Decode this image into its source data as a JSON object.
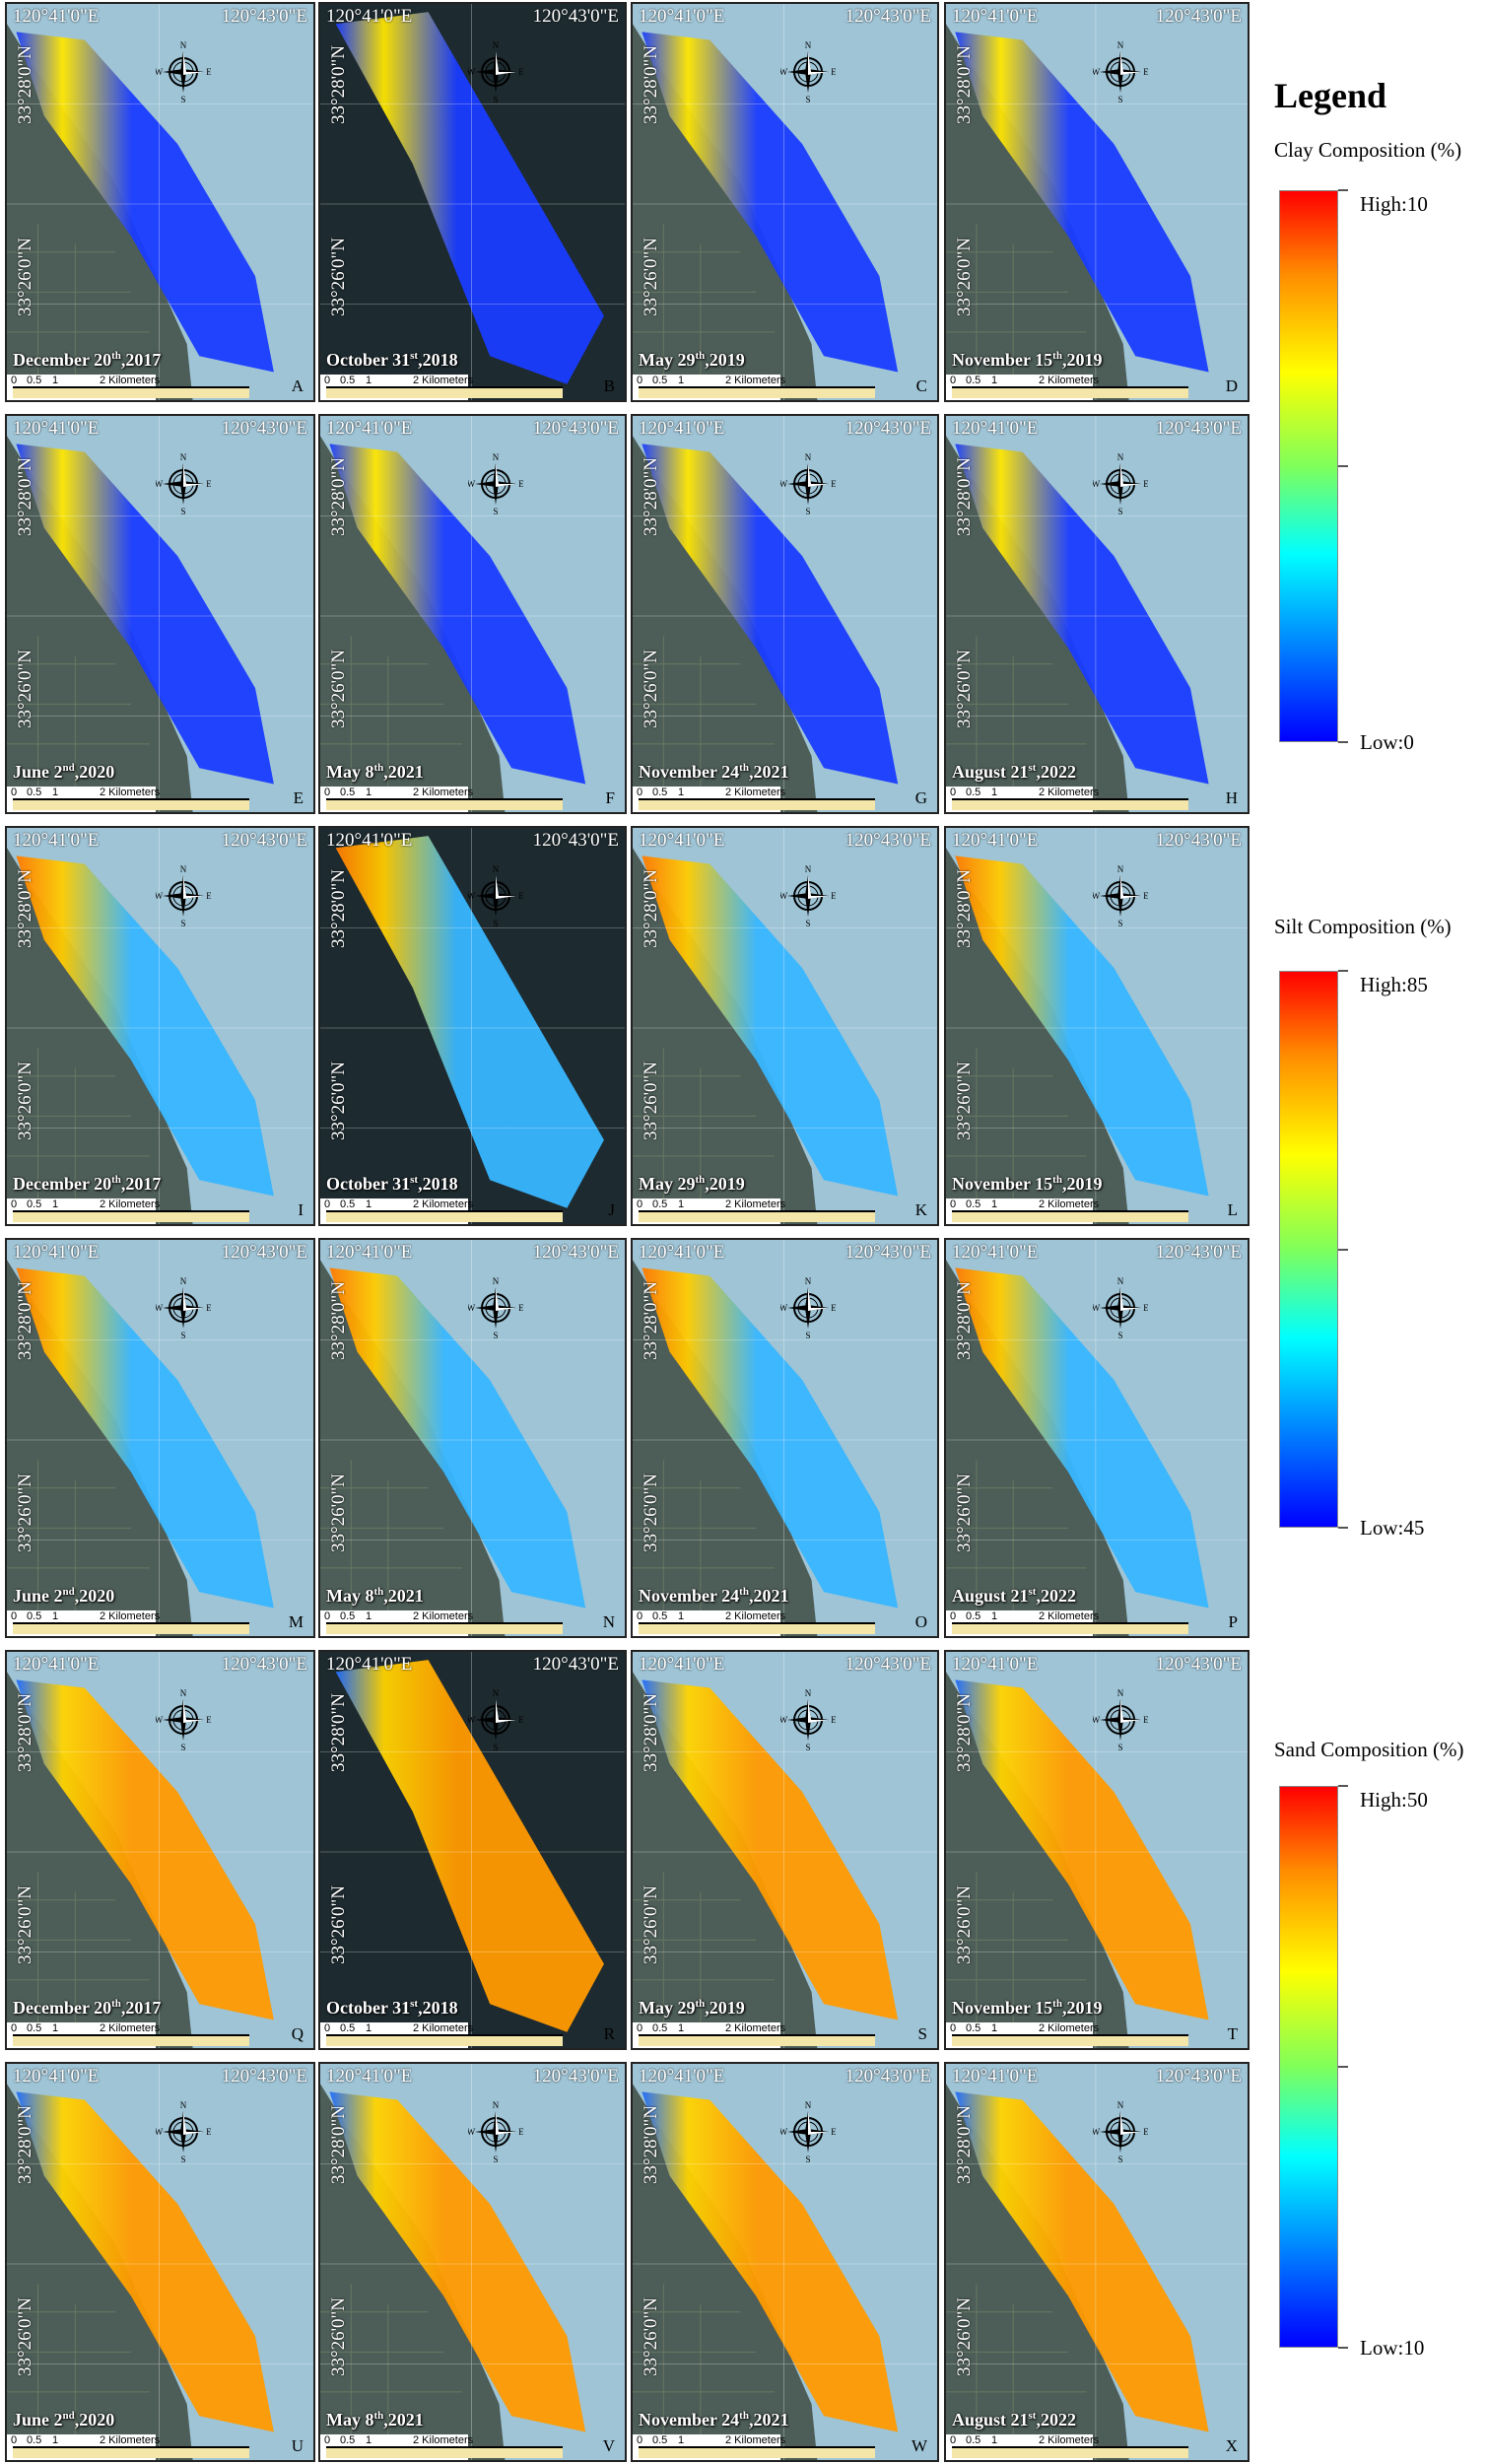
{
  "legend": {
    "title": "Legend",
    "scales": [
      {
        "title": "Clay Composition (%)",
        "high": "High:10",
        "low": "Low:0"
      },
      {
        "title": "Silt Composition (%)",
        "high": "High:85",
        "low": "Low:45"
      },
      {
        "title": "Sand Composition (%)",
        "high": "High:50",
        "low": "Low:10"
      }
    ]
  },
  "coords": {
    "lon1": "120°41'0\"E",
    "lon2": "120°43'0\"E",
    "lat1": "33°28'0\"N",
    "lat2": "33°26'0\"N"
  },
  "scalebar": {
    "labels": [
      "0",
      "0.5",
      "1",
      "2 Kilometers"
    ]
  },
  "compass": {
    "n": "N",
    "s": "S",
    "e": "E",
    "w": "W"
  },
  "panels": [
    {
      "letter": "A",
      "date": "December 20",
      "sup": "th",
      "year": ",2017",
      "variable": "clay"
    },
    {
      "letter": "B",
      "date": "October 31",
      "sup": "st",
      "year": ",2018",
      "variable": "clay"
    },
    {
      "letter": "C",
      "date": "May 29",
      "sup": "th",
      "year": ",2019",
      "variable": "clay"
    },
    {
      "letter": "D",
      "date": "November 15",
      "sup": "th",
      "year": ",2019",
      "variable": "clay"
    },
    {
      "letter": "E",
      "date": "June 2",
      "sup": "nd",
      "year": ",2020",
      "variable": "clay"
    },
    {
      "letter": "F",
      "date": "May 8",
      "sup": "th",
      "year": ",2021",
      "variable": "clay"
    },
    {
      "letter": "G",
      "date": "November 24",
      "sup": "th",
      "year": ",2021",
      "variable": "clay"
    },
    {
      "letter": "H",
      "date": "August 21",
      "sup": "st",
      "year": ",2022",
      "variable": "clay"
    },
    {
      "letter": "I",
      "date": "December 20",
      "sup": "th",
      "year": ",2017",
      "variable": "silt"
    },
    {
      "letter": "J",
      "date": "October 31",
      "sup": "st",
      "year": ",2018",
      "variable": "silt"
    },
    {
      "letter": "K",
      "date": "May 29",
      "sup": "th",
      "year": ",2019",
      "variable": "silt"
    },
    {
      "letter": "L",
      "date": "November 15",
      "sup": "th",
      "year": ",2019",
      "variable": "silt"
    },
    {
      "letter": "M",
      "date": "June 2",
      "sup": "nd",
      "year": ",2020",
      "variable": "silt"
    },
    {
      "letter": "N",
      "date": "May 8",
      "sup": "th",
      "year": ",2021",
      "variable": "silt"
    },
    {
      "letter": "O",
      "date": "November 24",
      "sup": "th",
      "year": ",2021",
      "variable": "silt"
    },
    {
      "letter": "P",
      "date": "August 21",
      "sup": "st",
      "year": ",2022",
      "variable": "silt"
    },
    {
      "letter": "Q",
      "date": "December 20",
      "sup": "th",
      "year": ",2017",
      "variable": "sand"
    },
    {
      "letter": "R",
      "date": "October 31",
      "sup": "st",
      "year": ",2018",
      "variable": "sand"
    },
    {
      "letter": "S",
      "date": "May 29",
      "sup": "th",
      "year": ",2019",
      "variable": "sand"
    },
    {
      "letter": "T",
      "date": "November 15",
      "sup": "th",
      "year": ",2019",
      "variable": "sand"
    },
    {
      "letter": "U",
      "date": "June 2",
      "sup": "nd",
      "year": ",2020",
      "variable": "sand"
    },
    {
      "letter": "V",
      "date": "May 8",
      "sup": "th",
      "year": ",2021",
      "variable": "sand"
    },
    {
      "letter": "W",
      "date": "November 24",
      "sup": "th",
      "year": ",2021",
      "variable": "sand"
    },
    {
      "letter": "X",
      "date": "August 21",
      "sup": "st",
      "year": ",2022",
      "variable": "sand"
    }
  ],
  "colors": {
    "clay_band": [
      "#1a3cff",
      "#ffe600",
      "#1a3cff"
    ],
    "silt_band": [
      "#ff7a00",
      "#ffcc00",
      "#38b6ff"
    ],
    "sand_band": [
      "#1e6bff",
      "#ffd400",
      "#ff9a00"
    ],
    "sea": "#9ec4d6",
    "land": "#4d5d58",
    "dark_scene": "#1d2a2f"
  }
}
